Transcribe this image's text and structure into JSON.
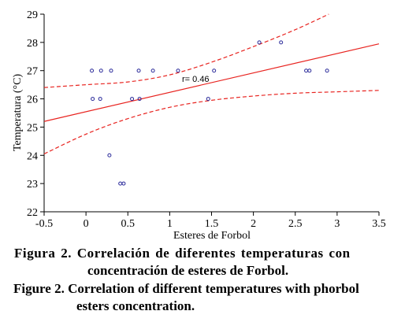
{
  "chart_data": {
    "type": "scatter",
    "xlabel": "Esteres de Forbol",
    "ylabel": "Temperatura (°C)",
    "xlim": [
      -0.5,
      3.5
    ],
    "ylim": [
      22,
      29
    ],
    "xticks": [
      "-0.5",
      "0",
      "0.5",
      "1",
      "1.5",
      "2",
      "2.5",
      "3",
      "3.5"
    ],
    "yticks": [
      "22",
      "23",
      "24",
      "25",
      "26",
      "27",
      "28",
      "29"
    ],
    "grid": false,
    "annotation": "r= 0.46",
    "points": [
      {
        "x": 0.07,
        "y": 27
      },
      {
        "x": 0.18,
        "y": 27
      },
      {
        "x": 0.3,
        "y": 27
      },
      {
        "x": 0.63,
        "y": 27
      },
      {
        "x": 0.8,
        "y": 27
      },
      {
        "x": 1.1,
        "y": 27
      },
      {
        "x": 1.53,
        "y": 27
      },
      {
        "x": 2.63,
        "y": 27
      },
      {
        "x": 2.67,
        "y": 27
      },
      {
        "x": 2.88,
        "y": 27
      },
      {
        "x": 0.08,
        "y": 26
      },
      {
        "x": 0.17,
        "y": 26
      },
      {
        "x": 0.55,
        "y": 26
      },
      {
        "x": 0.64,
        "y": 26
      },
      {
        "x": 1.46,
        "y": 26
      },
      {
        "x": 2.07,
        "y": 28
      },
      {
        "x": 2.33,
        "y": 28
      },
      {
        "x": 0.28,
        "y": 24
      },
      {
        "x": 0.41,
        "y": 23
      },
      {
        "x": 0.45,
        "y": 23
      }
    ],
    "fit_line": {
      "x": [
        -0.5,
        3.5
      ],
      "y": [
        25.2,
        27.95
      ]
    },
    "confidence_upper": {
      "x": [
        -0.5,
        0,
        0.5,
        1,
        1.5,
        2,
        2.5,
        2.9
      ],
      "y": [
        26.4,
        26.5,
        26.6,
        26.85,
        27.3,
        27.85,
        28.45,
        29.0
      ]
    },
    "confidence_lower": {
      "x": [
        -0.5,
        0,
        0.5,
        1,
        1.5,
        2,
        2.5,
        3,
        3.5
      ],
      "y": [
        24.05,
        24.75,
        25.3,
        25.7,
        25.95,
        26.1,
        26.2,
        26.25,
        26.3
      ]
    },
    "colors": {
      "points": "#2a2a9a",
      "fit": "#e8231f",
      "axis": "#000000"
    }
  },
  "caption": {
    "es_line1": "Figura 2. Correlación de diferentes temperaturas con",
    "es_line2": "concentración de esteres de Forbol.",
    "en_line1": "Figure 2. Correlation of different temperatures with phorbol",
    "en_line2": "esters concentration."
  }
}
